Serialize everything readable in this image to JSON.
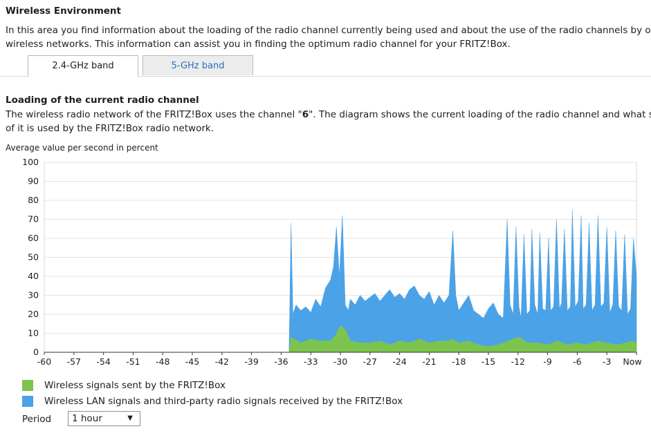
{
  "section": {
    "title": "Wireless Environment",
    "desc_line1": "In this area you find information about the loading of the radio channel currently being used and about the use of the radio channels by other",
    "desc_line2": "wireless networks. This information can assist you in finding the optimum radio channel for your FRITZ!Box."
  },
  "tabs": [
    {
      "label": "2.4-GHz band",
      "active": true
    },
    {
      "label": "5-GHz band",
      "active": false
    }
  ],
  "loading": {
    "title": "Loading of the current radio channel",
    "desc_line1_a": "The wireless radio network of the FRITZ!Box uses the channel \"",
    "channel": "6",
    "desc_line1_b": "\". The diagram shows the current loading of the radio channel and what share",
    "desc_line2": "of it is used by the FRITZ!Box radio network.",
    "axis_note": "Average value per second in percent"
  },
  "chart_data": {
    "type": "area",
    "xlabel": "",
    "ylabel": "",
    "ylim": [
      0,
      100
    ],
    "xlim": [
      -60,
      0
    ],
    "y_ticks": [
      "0",
      "10",
      "20",
      "30",
      "40",
      "50",
      "60",
      "70",
      "80",
      "90",
      "100"
    ],
    "x_ticks": [
      "-60",
      "-57",
      "-54",
      "-51",
      "-48",
      "-45",
      "-42",
      "-39",
      "-36",
      "-33",
      "-30",
      "-27",
      "-24",
      "-21",
      "-18",
      "-15",
      "-12",
      "-9",
      "-6",
      "-3",
      "Now"
    ],
    "grid": true,
    "series": [
      {
        "name": "Wireless LAN signals and third-party radio signals received by the FRITZ!Box",
        "color": "#4ca2e6",
        "x": [
          -35.2,
          -35,
          -34.8,
          -34.5,
          -34,
          -33.5,
          -33,
          -32.5,
          -32,
          -31.5,
          -31,
          -30.7,
          -30.4,
          -30.1,
          -29.8,
          -29.5,
          -29.2,
          -29,
          -28.5,
          -28,
          -27.5,
          -27,
          -26.5,
          -26,
          -25.5,
          -25,
          -24.5,
          -24,
          -23.5,
          -23,
          -22.5,
          -22,
          -21.5,
          -21,
          -20.5,
          -20,
          -19.5,
          -19,
          -18.6,
          -18.3,
          -18,
          -17.5,
          -17,
          -16.5,
          -16,
          -15.5,
          -15,
          -14.5,
          -14,
          -13.5,
          -13.1,
          -12.8,
          -12.5,
          -12.2,
          -11.9,
          -11.7,
          -11.4,
          -11.1,
          -10.8,
          -10.6,
          -10.3,
          -10,
          -9.8,
          -9.5,
          -9.2,
          -8.9,
          -8.7,
          -8.4,
          -8.1,
          -7.8,
          -7.6,
          -7.3,
          -7,
          -6.7,
          -6.5,
          -6.2,
          -5.9,
          -5.6,
          -5.4,
          -5.1,
          -4.8,
          -4.5,
          -4.2,
          -3.9,
          -3.6,
          -3.3,
          -3,
          -2.7,
          -2.4,
          -2.1,
          -1.8,
          -1.5,
          -1.2,
          -0.9,
          -0.6,
          -0.3,
          0
        ],
        "values": [
          0,
          68,
          20,
          25,
          22,
          24,
          21,
          28,
          24,
          34,
          38,
          45,
          66,
          40,
          72,
          25,
          22,
          28,
          25,
          30,
          27,
          29,
          31,
          27,
          30,
          33,
          29,
          31,
          28,
          33,
          35,
          30,
          28,
          32,
          25,
          30,
          26,
          30,
          64,
          30,
          22,
          26,
          30,
          22,
          20,
          18,
          23,
          26,
          20,
          18,
          70,
          25,
          20,
          66,
          24,
          18,
          62,
          20,
          22,
          65,
          25,
          20,
          63,
          23,
          22,
          60,
          22,
          24,
          70,
          23,
          26,
          65,
          22,
          24,
          75,
          24,
          27,
          72,
          23,
          25,
          68,
          22,
          25,
          72,
          24,
          26,
          66,
          21,
          25,
          64,
          24,
          22,
          62,
          20,
          23,
          60,
          40
        ]
      },
      {
        "name": "Wireless signals sent by the FRITZ!Box",
        "color": "#7cc44e",
        "x": [
          -35.2,
          -35,
          -34,
          -33,
          -32,
          -31,
          -30.5,
          -30,
          -29.5,
          -29,
          -28,
          -27,
          -26,
          -25,
          -24,
          -23,
          -22,
          -21,
          -20,
          -19,
          -18.6,
          -18,
          -17,
          -16,
          -15,
          -14,
          -13,
          -12,
          -11,
          -10,
          -9,
          -8,
          -7,
          -6,
          -5,
          -4,
          -3,
          -2,
          -1,
          -0.5,
          0
        ],
        "values": [
          0,
          8,
          5,
          7,
          6,
          6,
          9,
          14,
          12,
          6,
          5,
          5,
          6,
          4,
          6,
          5,
          7,
          5,
          6,
          6,
          7,
          5,
          6,
          4,
          3,
          4,
          6,
          8,
          5,
          5,
          4,
          6,
          4,
          5,
          4,
          6,
          5,
          4,
          5,
          6,
          5
        ]
      }
    ]
  },
  "legend": {
    "items": [
      {
        "label": "Wireless signals sent by the FRITZ!Box",
        "color": "#7cc44e"
      },
      {
        "label": "Wireless LAN signals and third-party radio signals received by the FRITZ!Box",
        "color": "#4ca2e6"
      }
    ]
  },
  "period": {
    "label": "Period",
    "value": "1 hour"
  }
}
